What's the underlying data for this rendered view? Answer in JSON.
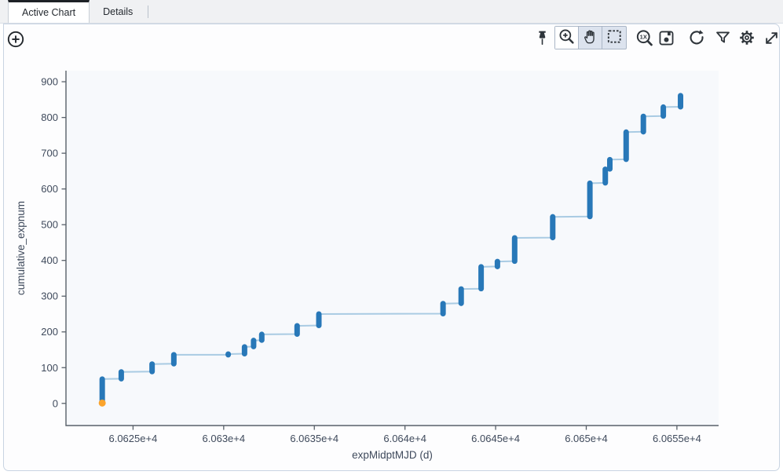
{
  "tabs": [
    {
      "label": "Active Chart",
      "active": true
    },
    {
      "label": "Details",
      "active": false
    }
  ],
  "toolbar": {
    "left_icons": [
      {
        "name": "add-chart-icon",
        "glyph": "plus-circle"
      }
    ],
    "right_icons": [
      {
        "name": "pin-icon",
        "glyph": "pushpin"
      },
      {
        "name": "zoom-in-icon",
        "glyph": "magnifier-plus",
        "selected": true
      },
      {
        "name": "pan-hand-icon",
        "glyph": "open-hand"
      },
      {
        "name": "select-area-icon",
        "glyph": "dashed-rectangle"
      },
      {
        "name": "zoom-original-icon",
        "glyph": "magnifier-1x"
      },
      {
        "name": "save-icon",
        "glyph": "floppy-disk"
      },
      {
        "name": "restore-icon",
        "glyph": "rotate-ccw-arrow"
      },
      {
        "name": "filter-icon",
        "glyph": "funnel"
      },
      {
        "name": "settings-icon",
        "glyph": "gear"
      },
      {
        "name": "expand-icon",
        "glyph": "diagonal-double-arrow"
      }
    ],
    "zoom_1x_label": "1X"
  },
  "chart_data": {
    "type": "scatter",
    "mode": "lines+markers",
    "title": "",
    "xlabel": "expMidptMJD (d)",
    "ylabel": "cumulative_expnum",
    "xlim": [
      60621.3,
      60657.3
    ],
    "ylim": [
      -62,
      931
    ],
    "grid": false,
    "legend": false,
    "x_ticks": [
      {
        "value": 60625,
        "label": "6.0625e+4"
      },
      {
        "value": 60630,
        "label": "6.063e+4"
      },
      {
        "value": 60635,
        "label": "6.0635e+4"
      },
      {
        "value": 60640,
        "label": "6.064e+4"
      },
      {
        "value": 60645,
        "label": "6.0645e+4"
      },
      {
        "value": 60650,
        "label": "6.065e+4"
      },
      {
        "value": 60655,
        "label": "6.0655e+4"
      }
    ],
    "y_ticks": [
      {
        "value": 0,
        "label": "0"
      },
      {
        "value": 100,
        "label": "100"
      },
      {
        "value": 200,
        "label": "200"
      },
      {
        "value": 300,
        "label": "300"
      },
      {
        "value": 400,
        "label": "400"
      },
      {
        "value": 500,
        "label": "500"
      },
      {
        "value": 600,
        "label": "600"
      },
      {
        "value": 700,
        "label": "700"
      },
      {
        "value": 800,
        "label": "800"
      },
      {
        "value": 900,
        "label": "900"
      }
    ],
    "series": [
      {
        "name": "cumulative_expnum vs expMidptMJD",
        "marker_color": "#2878b8",
        "connector_color": "#a9cbe3",
        "segments": [
          {
            "x": 60623.3,
            "y0": 2,
            "y1": 68
          },
          {
            "x": 60624.35,
            "y0": 69,
            "y1": 88
          },
          {
            "x": 60626.05,
            "y0": 89,
            "y1": 110
          },
          {
            "x": 60627.25,
            "y0": 111,
            "y1": 136
          },
          {
            "x": 60630.25,
            "y0": 136,
            "y1": 138
          },
          {
            "x": 60631.15,
            "y0": 139,
            "y1": 158
          },
          {
            "x": 60631.65,
            "y0": 159,
            "y1": 176
          },
          {
            "x": 60632.1,
            "y0": 177,
            "y1": 193
          },
          {
            "x": 60634.05,
            "y0": 194,
            "y1": 217
          },
          {
            "x": 60635.25,
            "y0": 218,
            "y1": 250
          },
          {
            "x": 60642.1,
            "y0": 251,
            "y1": 279
          },
          {
            "x": 60643.1,
            "y0": 280,
            "y1": 320
          },
          {
            "x": 60644.2,
            "y0": 321,
            "y1": 382
          },
          {
            "x": 60645.1,
            "y0": 383,
            "y1": 397
          },
          {
            "x": 60646.05,
            "y0": 398,
            "y1": 463
          },
          {
            "x": 60648.15,
            "y0": 464,
            "y1": 522
          },
          {
            "x": 60650.2,
            "y0": 523,
            "y1": 616
          },
          {
            "x": 60651.05,
            "y0": 617,
            "y1": 655
          },
          {
            "x": 60651.3,
            "y0": 656,
            "y1": 682
          },
          {
            "x": 60652.2,
            "y0": 683,
            "y1": 759
          },
          {
            "x": 60653.15,
            "y0": 760,
            "y1": 803
          },
          {
            "x": 60654.25,
            "y0": 804,
            "y1": 829
          },
          {
            "x": 60655.2,
            "y0": 830,
            "y1": 861
          }
        ]
      }
    ],
    "highlight_point": {
      "x": 60623.3,
      "y": 1,
      "color": "#fba42c"
    }
  }
}
